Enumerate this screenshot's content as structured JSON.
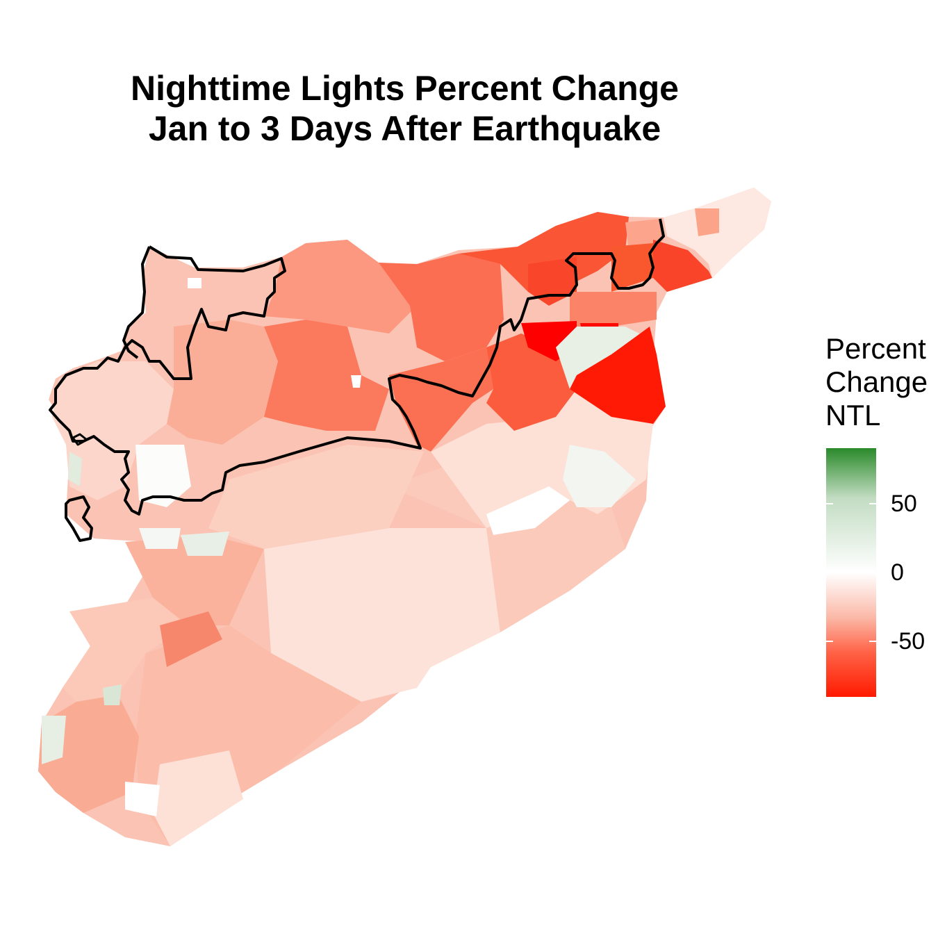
{
  "title": {
    "line1": "Nighttime Lights Percent Change",
    "line2": "Jan to 3 Days After Earthquake"
  },
  "legend": {
    "title_line1": "Percent",
    "title_line2": "Change",
    "title_line3": "NTL",
    "ticks": [
      {
        "value": 50,
        "label": "50"
      },
      {
        "value": 0,
        "label": "0"
      },
      {
        "value": -50,
        "label": "-50"
      }
    ],
    "range": [
      -90,
      90
    ],
    "colors": {
      "high": "#2a8a2a",
      "mid": "#ffffff",
      "low": "#ff1a00"
    }
  },
  "map": {
    "region": "Syria sub-districts",
    "highlight_outline_color": "#000000",
    "regions": [
      {
        "id": "r1",
        "value": -85
      },
      {
        "id": "r2",
        "value": -80
      },
      {
        "id": "r3",
        "value": -70
      },
      {
        "id": "r4",
        "value": -65
      },
      {
        "id": "r5",
        "value": -60
      },
      {
        "id": "r6",
        "value": -55
      },
      {
        "id": "r7",
        "value": -50
      },
      {
        "id": "r8",
        "value": -45
      },
      {
        "id": "r9",
        "value": -40
      },
      {
        "id": "r10",
        "value": -35
      },
      {
        "id": "r11",
        "value": -30
      },
      {
        "id": "r12",
        "value": -25
      },
      {
        "id": "r13",
        "value": -20
      },
      {
        "id": "r14",
        "value": -15
      },
      {
        "id": "r15",
        "value": -10
      },
      {
        "id": "r16",
        "value": 5
      },
      {
        "id": "r17",
        "value": 10
      }
    ]
  }
}
